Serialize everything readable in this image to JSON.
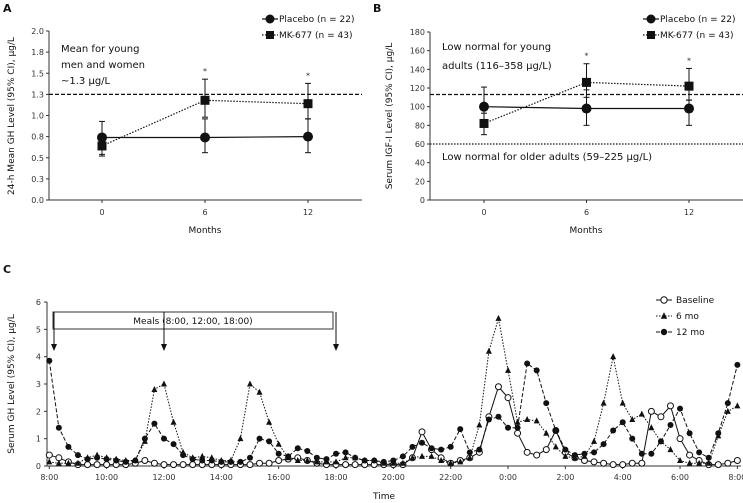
{
  "colors": {
    "ink": "#111111",
    "background": "#ffffff"
  },
  "chart_data": [
    {
      "panel": "A",
      "type": "line",
      "xlabel": "Months",
      "ylabel": "24-h Mean GH Level (95% CI), μg/L",
      "x": [
        0,
        6,
        12
      ],
      "x_tick_labels": [
        "0",
        "6",
        "12"
      ],
      "ylim": [
        0,
        2
      ],
      "y_ticks": [
        0,
        0.25,
        0.5,
        0.75,
        1.0,
        1.25,
        1.5,
        1.75,
        2.0
      ],
      "y_tick_labels": [
        "0.0",
        "0.3",
        "0.5",
        "0.8",
        "1.0",
        "1.3",
        "1.5",
        "1.8",
        "2.0"
      ],
      "series": [
        {
          "name": "Placebo (n = 22)",
          "marker": "circle-filled",
          "line": "solid",
          "values": [
            0.74,
            0.74,
            0.75
          ],
          "ci_low": [
            0.54,
            0.56,
            0.56
          ],
          "ci_high": [
            0.93,
            0.96,
            0.96
          ]
        },
        {
          "name": "MK-677 (n = 43)",
          "marker": "square-filled",
          "line": "dotted",
          "values": [
            0.64,
            1.18,
            1.14
          ],
          "ci_low": [
            0.52,
            0.98,
            0.96
          ],
          "ci_high": [
            0.78,
            1.43,
            1.38
          ]
        }
      ],
      "significance_marks": [
        {
          "x": 6,
          "text": "*"
        },
        {
          "x": 12,
          "text": "*"
        }
      ],
      "reference_lines": [
        {
          "y": 1.25,
          "style": "dashed"
        }
      ],
      "annotation": [
        "Mean for young",
        "men and women",
        "~1.3 μg/L"
      ],
      "legend_position": "top-right",
      "grid": false
    },
    {
      "panel": "B",
      "type": "line",
      "xlabel": "Months",
      "ylabel": "Serum IGF-I Level (95% CI), μg/L",
      "x": [
        0,
        6,
        12
      ],
      "x_tick_labels": [
        "0",
        "6",
        "12"
      ],
      "ylim": [
        0,
        180
      ],
      "y_ticks": [
        0,
        20,
        40,
        60,
        80,
        100,
        120,
        140,
        160,
        180
      ],
      "y_tick_labels": [
        "0",
        "20",
        "40",
        "60",
        "80",
        "100",
        "120",
        "140",
        "160",
        "180"
      ],
      "series": [
        {
          "name": "Placebo (n = 22)",
          "marker": "circle-filled",
          "line": "solid",
          "values": [
            100,
            98,
            98
          ],
          "ci_low": [
            80,
            80,
            80
          ],
          "ci_high": [
            121,
            118,
            107
          ]
        },
        {
          "name": "MK-677 (n = 43)",
          "marker": "square-filled",
          "line": "dotted",
          "values": [
            82,
            126,
            122
          ],
          "ci_low": [
            70,
            110,
            107
          ],
          "ci_high": [
            93,
            146,
            141
          ]
        }
      ],
      "significance_marks": [
        {
          "x": 6,
          "text": "*"
        },
        {
          "x": 12,
          "text": "*"
        }
      ],
      "reference_lines": [
        {
          "y": 113,
          "style": "dashed"
        },
        {
          "y": 60,
          "style": "dotted"
        }
      ],
      "annotation_upper": [
        "Low normal for young",
        "adults (116–358 μg/L)"
      ],
      "annotation_lower": "Low normal for older adults (59–225 μg/L)",
      "legend_position": "top-right",
      "grid": false
    },
    {
      "panel": "C",
      "type": "line",
      "xlabel": "Time",
      "ylabel": "Serum GH Level (95% CI), μg/L",
      "ylim": [
        0,
        6
      ],
      "y_ticks": [
        0,
        1,
        2,
        3,
        4,
        5,
        6
      ],
      "y_tick_labels": [
        "0",
        "1",
        "2",
        "3",
        "4",
        "5",
        "6"
      ],
      "x_tick_labels": [
        "8:00",
        "10:00",
        "12:00",
        "14:00",
        "16:00",
        "18:00",
        "20:00",
        "22:00",
        "0:00",
        "2:00",
        "4:00",
        "6:00",
        "8:00"
      ],
      "meals_label": "Meals (8:00, 12:00, 18:00)",
      "meal_times": [
        "8:00",
        "12:00",
        "18:00"
      ],
      "x": [
        "8:00",
        "8:20",
        "8:40",
        "9:00",
        "9:20",
        "9:40",
        "10:00",
        "10:20",
        "10:40",
        "11:00",
        "11:20",
        "11:40",
        "12:00",
        "12:20",
        "12:40",
        "13:00",
        "13:20",
        "13:40",
        "14:00",
        "14:20",
        "14:40",
        "15:00",
        "15:20",
        "15:40",
        "16:00",
        "16:20",
        "16:40",
        "17:00",
        "17:20",
        "17:40",
        "18:00",
        "18:20",
        "18:40",
        "19:00",
        "19:20",
        "19:40",
        "20:00",
        "20:20",
        "20:40",
        "21:00",
        "21:20",
        "21:40",
        "22:00",
        "22:20",
        "22:40",
        "23:00",
        "23:20",
        "23:40",
        "0:00",
        "0:20",
        "0:40",
        "1:00",
        "1:20",
        "1:40",
        "2:00",
        "2:20",
        "2:40",
        "3:00",
        "3:20",
        "3:40",
        "4:00",
        "4:20",
        "4:40",
        "5:00",
        "5:20",
        "5:40",
        "6:00",
        "6:20",
        "6:40",
        "7:00",
        "7:20",
        "7:40",
        "8:00"
      ],
      "series": [
        {
          "name": "Baseline",
          "marker": "circle-open",
          "line": "solid",
          "values": [
            0.4,
            0.3,
            0.15,
            0.05,
            0.05,
            0.05,
            0.05,
            0.05,
            0.05,
            0.1,
            0.2,
            0.1,
            0.05,
            0.05,
            0.05,
            0.05,
            0.05,
            0.05,
            0.05,
            0.05,
            0.05,
            0.05,
            0.1,
            0.1,
            0.2,
            0.25,
            0.3,
            0.2,
            0.1,
            0.05,
            0.05,
            0.05,
            0.05,
            0.05,
            0.05,
            0.05,
            0.05,
            0.05,
            0.3,
            1.25,
            0.6,
            0.3,
            0.1,
            0.2,
            0.3,
            0.5,
            1.8,
            2.9,
            2.5,
            1.2,
            0.5,
            0.4,
            0.6,
            1.3,
            0.5,
            0.3,
            0.2,
            0.15,
            0.1,
            0.05,
            0.05,
            0.1,
            0.1,
            2.0,
            1.8,
            2.2,
            1.0,
            0.4,
            0.2,
            0.05,
            0.05,
            0.1,
            0.2
          ]
        },
        {
          "name": "6 mo",
          "marker": "triangle-filled",
          "line": "dotted",
          "values": [
            0.15,
            0.1,
            0.1,
            0.1,
            0.3,
            0.4,
            0.3,
            0.25,
            0.2,
            0.2,
            0.9,
            2.8,
            3.0,
            1.6,
            0.5,
            0.3,
            0.35,
            0.3,
            0.2,
            0.2,
            1.0,
            3.0,
            2.7,
            1.6,
            0.8,
            0.3,
            0.2,
            0.2,
            0.15,
            0.15,
            0.15,
            0.3,
            0.3,
            0.2,
            0.2,
            0.1,
            0.1,
            0.1,
            0.3,
            0.35,
            0.35,
            0.2,
            0.1,
            0.15,
            0.3,
            1.5,
            4.2,
            5.4,
            3.5,
            1.6,
            1.7,
            1.65,
            1.2,
            0.7,
            0.35,
            0.3,
            0.35,
            0.9,
            2.3,
            4.0,
            2.3,
            1.7,
            1.9,
            1.4,
            0.9,
            0.6,
            0.2,
            0.1,
            0.1,
            0.1,
            1.1,
            2.0,
            2.2
          ]
        },
        {
          "name": "12 mo",
          "marker": "circle-filled",
          "line": "dashed",
          "values": [
            3.85,
            1.4,
            0.7,
            0.4,
            0.25,
            0.3,
            0.25,
            0.2,
            0.15,
            0.2,
            1.0,
            1.55,
            1.0,
            0.8,
            0.4,
            0.25,
            0.2,
            0.2,
            0.15,
            0.15,
            0.15,
            0.3,
            1.0,
            0.9,
            0.45,
            0.35,
            0.65,
            0.55,
            0.3,
            0.25,
            0.45,
            0.5,
            0.3,
            0.2,
            0.2,
            0.15,
            0.2,
            0.35,
            0.7,
            0.85,
            0.65,
            0.6,
            0.7,
            1.35,
            0.5,
            0.6,
            1.7,
            1.8,
            1.4,
            1.4,
            3.75,
            3.5,
            2.3,
            1.3,
            0.6,
            0.4,
            0.45,
            0.5,
            0.8,
            1.3,
            1.6,
            1.0,
            0.45,
            0.45,
            0.9,
            1.5,
            2.1,
            1.2,
            0.5,
            0.3,
            1.2,
            2.3,
            3.7
          ]
        }
      ],
      "legend_position": "top-right",
      "grid": false
    }
  ]
}
